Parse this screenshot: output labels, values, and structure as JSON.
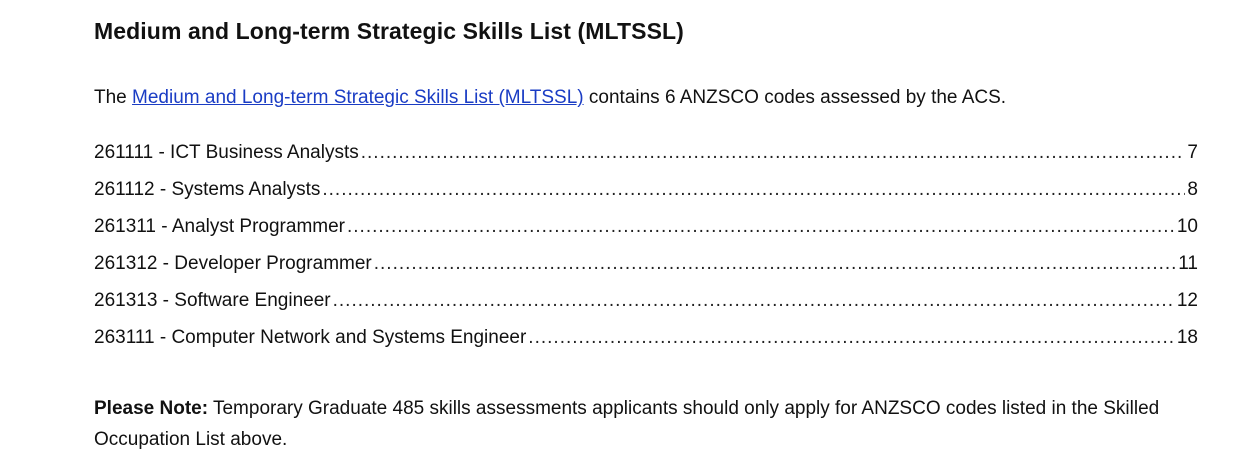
{
  "heading": "Medium and Long-term Strategic Skills List (MLTSSL)",
  "intro": {
    "prefix": "The ",
    "link_text": "Medium and Long-term Strategic Skills List (MLTSSL)",
    "suffix": " contains 6 ANZSCO codes assessed by the ACS."
  },
  "toc": [
    {
      "label": "261111 - ICT Business Analysts",
      "page": "7"
    },
    {
      "label": "261112 - Systems Analysts",
      "page": "8"
    },
    {
      "label": "261311 - Analyst Programmer",
      "page": "10"
    },
    {
      "label": "261312 - Developer Programmer",
      "page": "11"
    },
    {
      "label": "261313 - Software Engineer",
      "page": "12"
    },
    {
      "label": "263111 - Computer Network and Systems Engineer",
      "page": "18"
    }
  ],
  "note": {
    "label": "Please Note:",
    "text": " Temporary Graduate 485 skills assessments applicants should only apply for ANZSCO codes listed in the Skilled Occupation List above."
  },
  "colors": {
    "link": "#1a3cc4",
    "text": "#111111",
    "background": "#ffffff"
  }
}
